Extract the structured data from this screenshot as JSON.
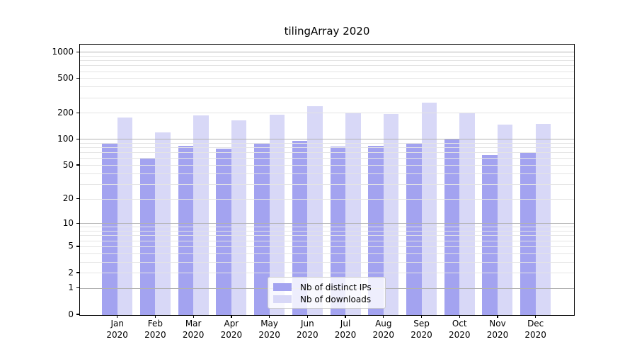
{
  "chart_data": {
    "type": "bar",
    "title": "tilingArray 2020",
    "months": [
      "Jan",
      "Feb",
      "Mar",
      "Apr",
      "May",
      "Jun",
      "Jul",
      "Aug",
      "Sep",
      "Oct",
      "Nov",
      "Dec"
    ],
    "year": "2020",
    "series": [
      {
        "name": "Nb of distinct IPs",
        "color": "#a3a3f0",
        "values": [
          88,
          60,
          84,
          78,
          90,
          95,
          82,
          83,
          90,
          100,
          65,
          70
        ]
      },
      {
        "name": "Nb of downloads",
        "color": "#d8d8f7",
        "values": [
          177,
          120,
          187,
          165,
          190,
          237,
          200,
          195,
          264,
          200,
          146,
          150
        ]
      }
    ],
    "y_ticks": [
      0,
      1,
      2,
      5,
      10,
      20,
      50,
      100,
      200,
      500,
      1000
    ],
    "y_tick_labels": [
      "0",
      "1",
      "2",
      "5",
      "10",
      "20",
      "50",
      "100",
      "200",
      "500",
      "1000"
    ],
    "y_scale": "log10(value+1)",
    "ylim": [
      0,
      1200
    ],
    "grid": "major+minor",
    "legend_position": "lower center"
  },
  "colors": {
    "background": "#ffffff",
    "major_grid": "#b2b2b2",
    "minor_grid": "#e4e4e4",
    "axis": "#000000",
    "legend_border": "#cccccc"
  }
}
